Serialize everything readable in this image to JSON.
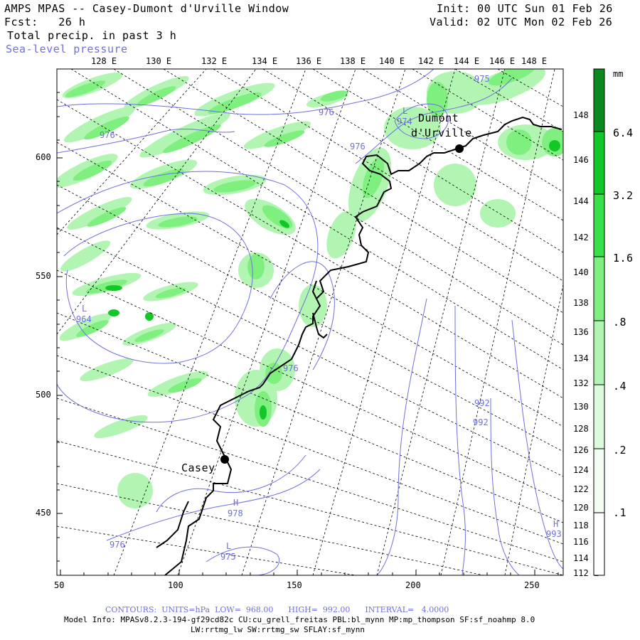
{
  "header": {
    "title": "AMPS MPAS -- Casey-Dumont d'Urville Window",
    "fcst": "Fcst:   26 h",
    "field": "Total precip. in past 3 h",
    "contour_field": "Sea-level pressure",
    "init": "Init: 00 UTC Sun 01 Feb 26",
    "valid": "Valid: 02 UTC Mon 02 Feb 26"
  },
  "top_lon_labels": [
    "128 E",
    "130 E",
    "132 E",
    "134 E",
    "136 E",
    "138 E",
    "140 E",
    "142 E",
    "144 E",
    "146 E",
    "148 E"
  ],
  "right_lon_labels": [
    "148 E",
    "146 E",
    "144 E",
    "142 E",
    "140 E",
    "138 E",
    "136 E",
    "134 E",
    "132 E",
    "130 E",
    "128 E",
    "126 E",
    "124 E",
    "122 E",
    "120 E",
    "118 E",
    "116 E",
    "114 E",
    "112 E"
  ],
  "left_axis": [
    "600",
    "550",
    "500",
    "450"
  ],
  "bottom_axis": [
    "50",
    "100",
    "150",
    "200",
    "250"
  ],
  "legend": {
    "unit": "mm",
    "labels": [
      "6.4",
      "3.2",
      "1.6",
      ".8",
      ".4",
      ".2",
      ".1"
    ],
    "colors": [
      "#0a8a1e",
      "#12c728",
      "#3ae04a",
      "#7ff07f",
      "#b2f5b2",
      "#dcfadc",
      "#f3fdf3"
    ]
  },
  "stations": [
    {
      "name": "Casey"
    },
    {
      "name_line1": "Dumont",
      "name_line2": "d'Urville"
    }
  ],
  "pressure_labels": [
    "976",
    "974",
    "976",
    "975",
    "976",
    "964",
    "976",
    "992",
    "992",
    "976",
    "978",
    "975",
    "993"
  ],
  "low_markers": [
    "L",
    "L",
    "L"
  ],
  "high_markers": [
    "H",
    "H"
  ],
  "footer": {
    "contours": "CONTOURS:  UNITS=hPa  LOW=  968.00      HIGH=  992.00      INTERVAL=   4.0000",
    "model_info": "Model Info: MPASv8.2.3-194-gf29cd82c CU:cu_grell_freitas PBL:bl_mynn MP:mp_thompson SF:sf_noahmp 8.0",
    "model_info2": "LW:rrtmg_lw SW:rrtmg_sw SFLAY:sf_mynn"
  },
  "colors": {
    "contour": "#6f6fe0",
    "coast": "#000000",
    "grid": "#000000"
  }
}
